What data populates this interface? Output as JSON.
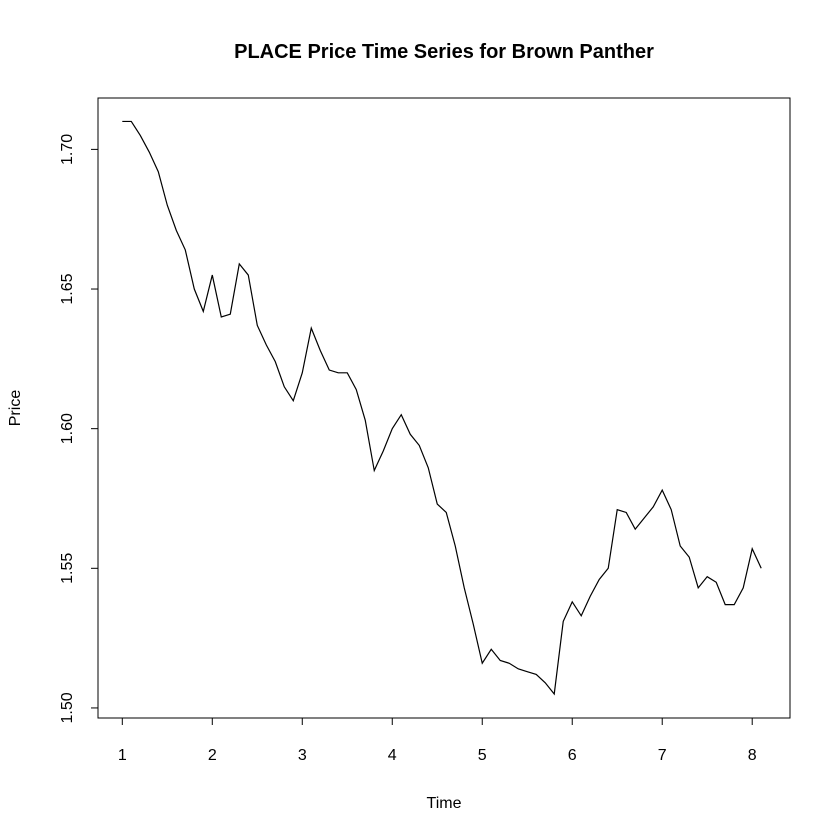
{
  "chart_data": {
    "type": "line",
    "title": "PLACE Price Time Series for Brown Panther",
    "x_label": "Time",
    "y_label": "Price",
    "x": [
      1.0,
      1.1,
      1.2,
      1.3,
      1.4,
      1.5,
      1.6,
      1.7,
      1.8,
      1.9,
      2.0,
      2.1,
      2.2,
      2.3,
      2.4,
      2.5,
      2.6,
      2.7,
      2.8,
      2.9,
      3.0,
      3.1,
      3.2,
      3.3,
      3.4,
      3.5,
      3.6,
      3.7,
      3.8,
      3.9,
      4.0,
      4.1,
      4.2,
      4.3,
      4.4,
      4.5,
      4.6,
      4.7,
      4.8,
      4.9,
      5.0,
      5.1,
      5.2,
      5.3,
      5.4,
      5.5,
      5.6,
      5.7,
      5.8,
      5.9,
      6.0,
      6.1,
      6.2,
      6.3,
      6.4,
      6.5,
      6.6,
      6.7,
      6.8,
      6.9,
      7.0,
      7.1,
      7.2,
      7.3,
      7.4,
      7.5,
      7.6,
      7.7,
      7.8,
      7.9,
      8.0,
      8.1
    ],
    "series": [
      {
        "color": "#000000",
        "values": [
          1.71,
          1.71,
          1.705,
          1.699,
          1.692,
          1.68,
          1.671,
          1.664,
          1.65,
          1.642,
          1.655,
          1.64,
          1.641,
          1.659,
          1.655,
          1.637,
          1.63,
          1.624,
          1.615,
          1.61,
          1.62,
          1.636,
          1.628,
          1.621,
          1.62,
          1.62,
          1.614,
          1.603,
          1.585,
          1.592,
          1.6,
          1.605,
          1.598,
          1.594,
          1.586,
          1.573,
          1.57,
          1.558,
          1.543,
          1.53,
          1.516,
          1.521,
          1.517,
          1.516,
          1.514,
          1.513,
          1.512,
          1.509,
          1.505,
          1.531,
          1.538,
          1.533,
          1.54,
          1.546,
          1.55,
          1.571,
          1.57,
          1.564,
          1.568,
          1.572,
          1.578,
          1.571,
          1.558,
          1.554,
          1.543,
          1.547,
          1.545,
          1.537,
          1.537,
          1.543,
          1.557,
          1.55
        ]
      }
    ],
    "xlim": [
      0.73,
      8.42
    ],
    "ylim": [
      1.4964,
      1.7184
    ],
    "xticks": [
      1,
      2,
      3,
      4,
      5,
      6,
      7,
      8
    ],
    "yticks": [
      {
        "value": 1.5,
        "label": "1.50"
      },
      1.55,
      {
        "value": 1.6,
        "label": "1.60"
      },
      1.65,
      {
        "value": 1.7,
        "label": "1.70"
      }
    ]
  }
}
